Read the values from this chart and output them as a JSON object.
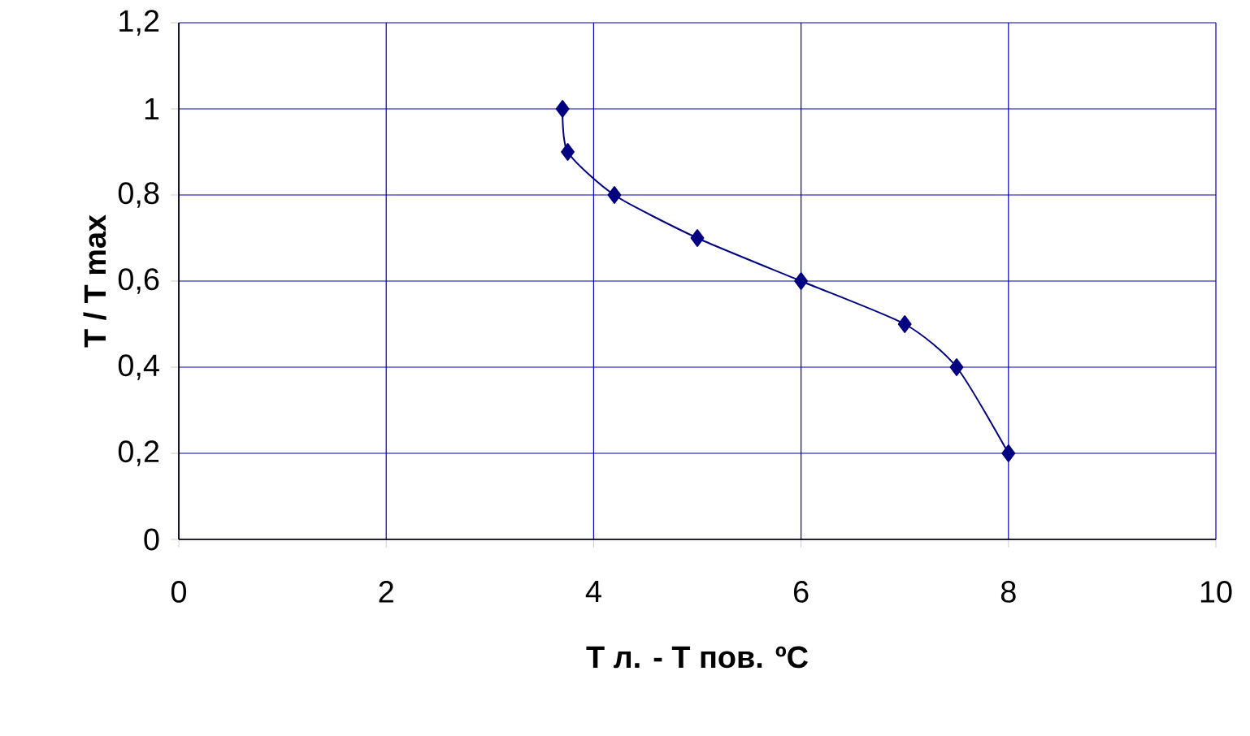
{
  "chart_data": {
    "type": "line",
    "xlabel": "T л. - T пов. ºC",
    "ylabel": "T / T max",
    "x": [
      3.7,
      3.75,
      4.2,
      5,
      6,
      7,
      7.5,
      8
    ],
    "series": [
      {
        "color": "#000080",
        "values": [
          1.0,
          0.9,
          0.8,
          0.7,
          0.6,
          0.5,
          0.4,
          0.2
        ]
      }
    ],
    "xlim": [
      0,
      10
    ],
    "xticks": [
      0,
      2,
      4,
      6,
      8,
      10
    ],
    "ylim": [
      0,
      1.2
    ],
    "yticks": [
      0,
      {
        "value": 0.2,
        "label": "0,2"
      },
      {
        "value": 0.4,
        "label": "0,4"
      },
      {
        "value": 0.6,
        "label": "0,6"
      },
      {
        "value": 0.8,
        "label": "0,8"
      },
      1,
      {
        "value": 1.2,
        "label": "1,2"
      }
    ],
    "grid": true,
    "marker": "diamond",
    "line_style": "solid"
  }
}
